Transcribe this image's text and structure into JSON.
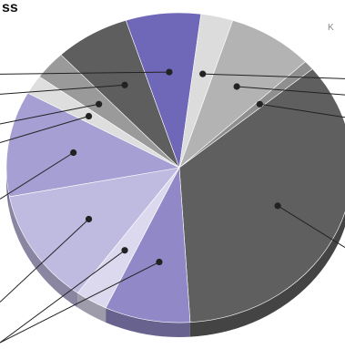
{
  "title_fragment": "ss",
  "corner_label": "K",
  "chart_data": {
    "type": "pie",
    "style": "3d-tilted",
    "title": "ss",
    "labels_visible": [
      "K"
    ],
    "slices": [
      {
        "value": 8.0,
        "color": "#b3b3b3"
      },
      {
        "value": 1.0,
        "color": "#8f8f8f"
      },
      {
        "value": 35.0,
        "color": "#5f5f5f"
      },
      {
        "value": 8.0,
        "color": "#9188c7"
      },
      {
        "value": 3.0,
        "color": "#dcd9ee"
      },
      {
        "value": 12.0,
        "color": "#bfbae0"
      },
      {
        "value": 11.0,
        "color": "#a59fd3"
      },
      {
        "value": 2.0,
        "color": "#dedede"
      },
      {
        "value": 3.0,
        "color": "#9a9a9a"
      },
      {
        "value": 7.0,
        "color": "#5e5e5e"
      },
      {
        "value": 7.0,
        "color": "#6f67b8"
      },
      {
        "value": 3.0,
        "color": "#dcdcdc"
      }
    ]
  }
}
